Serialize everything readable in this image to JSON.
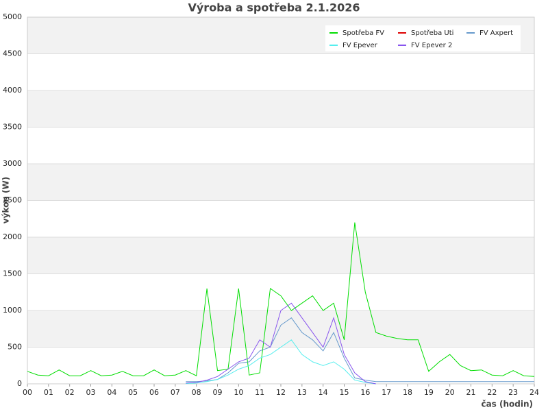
{
  "chart_data": {
    "type": "line",
    "title": "Výroba a spotřeba 2.1.2026",
    "xlabel": "čas (hodin)",
    "ylabel": "výkon (W)",
    "x": [
      0,
      0.5,
      1,
      1.5,
      2,
      2.5,
      3,
      3.5,
      4,
      4.5,
      5,
      5.5,
      6,
      6.5,
      7,
      7.5,
      8,
      8.5,
      9,
      9.5,
      10,
      10.5,
      11,
      11.5,
      12,
      12.5,
      13,
      13.5,
      14,
      14.5,
      15,
      15.5,
      16,
      16.5,
      17,
      17.5,
      18,
      18.5,
      19,
      19.5,
      20,
      20.5,
      21,
      21.5,
      22,
      22.5,
      23,
      23.5,
      24
    ],
    "xlim": [
      0,
      24
    ],
    "xticks": [
      {
        "value": 0,
        "label": "00"
      },
      {
        "value": 1,
        "label": "01"
      },
      {
        "value": 2,
        "label": "02"
      },
      {
        "value": 3,
        "label": "03"
      },
      {
        "value": 4,
        "label": "04"
      },
      {
        "value": 5,
        "label": "05"
      },
      {
        "value": 6,
        "label": "06"
      },
      {
        "value": 7,
        "label": "07"
      },
      {
        "value": 8,
        "label": "08"
      },
      {
        "value": 9,
        "label": "09"
      },
      10,
      11,
      12,
      13,
      14,
      15,
      16,
      17,
      18,
      19,
      20,
      21,
      22,
      23,
      24
    ],
    "ylim": [
      0,
      5000
    ],
    "yticks": [
      0,
      500,
      1000,
      1500,
      2000,
      2500,
      3000,
      3500,
      4000,
      4500,
      5000
    ],
    "grid": true,
    "legend": "upper right",
    "series": [
      {
        "name": "Spotřeba FV",
        "color": "#00dd00",
        "values": [
          170,
          120,
          110,
          190,
          110,
          110,
          180,
          110,
          120,
          170,
          110,
          110,
          190,
          110,
          120,
          180,
          110,
          1300,
          180,
          200,
          1300,
          120,
          150,
          1300,
          1200,
          1000,
          1100,
          1200,
          1000,
          1100,
          600,
          2200,
          1250,
          700,
          650,
          620,
          600,
          600,
          170,
          300,
          400,
          250,
          180,
          190,
          120,
          110,
          180,
          110,
          100
        ]
      },
      {
        "name": "Spotřeba Uti",
        "color": "#dd0000",
        "values": [
          null,
          null,
          null,
          null,
          null,
          null,
          null,
          null,
          null,
          null,
          null,
          null,
          null,
          null,
          null,
          null,
          null,
          null,
          null,
          null,
          null,
          null,
          null,
          null,
          null,
          null,
          null,
          null,
          null,
          null,
          null,
          null,
          null,
          null,
          null,
          null,
          null,
          null,
          null,
          null,
          null,
          null,
          null,
          null,
          null,
          null,
          null,
          null,
          null
        ]
      },
      {
        "name": "FV Axpert",
        "color": "#6699cc",
        "values": [
          null,
          null,
          null,
          null,
          null,
          null,
          null,
          null,
          null,
          null,
          null,
          null,
          null,
          null,
          null,
          30,
          30,
          40,
          60,
          150,
          280,
          300,
          450,
          500,
          800,
          900,
          700,
          600,
          450,
          700,
          350,
          80,
          50,
          30,
          30,
          30,
          30,
          30,
          30,
          30,
          30,
          30,
          30,
          30,
          30,
          30,
          30,
          30,
          30
        ]
      },
      {
        "name": "FV Epever",
        "color": "#55eeee",
        "values": [
          null,
          null,
          null,
          null,
          null,
          null,
          null,
          null,
          null,
          null,
          null,
          null,
          null,
          null,
          null,
          5,
          10,
          30,
          60,
          120,
          200,
          250,
          350,
          400,
          500,
          600,
          400,
          300,
          250,
          300,
          200,
          50,
          20,
          0,
          null,
          null,
          null,
          null,
          null,
          null,
          null,
          null,
          null,
          null,
          null,
          null,
          null,
          null,
          null
        ]
      },
      {
        "name": "FV Epever 2",
        "color": "#8855ee",
        "values": [
          null,
          null,
          null,
          null,
          null,
          null,
          null,
          null,
          null,
          null,
          null,
          null,
          null,
          null,
          null,
          10,
          20,
          50,
          100,
          200,
          300,
          350,
          600,
          500,
          1000,
          1100,
          900,
          700,
          500,
          900,
          400,
          150,
          30,
          0,
          null,
          null,
          null,
          null,
          null,
          null,
          null,
          null,
          null,
          null,
          null,
          null,
          null,
          null,
          null
        ]
      }
    ]
  }
}
